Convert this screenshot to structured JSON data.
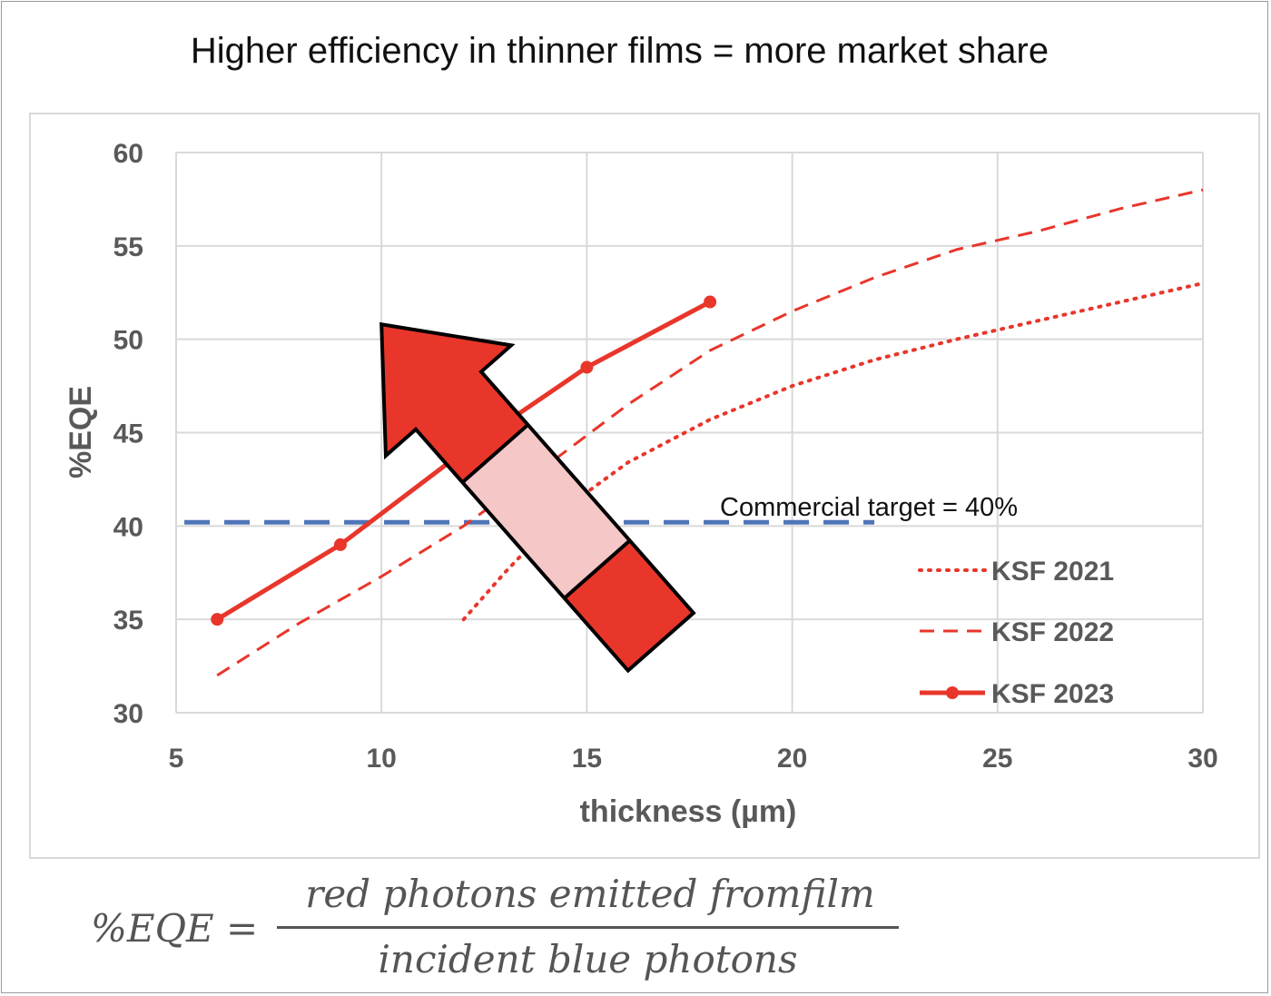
{
  "title": "Higher efficiency in thinner films = more market share",
  "formula": {
    "lhs": "%EQE =",
    "numerator": "red photons emitted fromfilm",
    "denominator": "incident blue photons"
  },
  "chart_data": {
    "type": "line",
    "title": "Higher efficiency in thinner films = more market share",
    "xlabel": "thickness (µm)",
    "ylabel": "%EQE",
    "xlim": [
      5,
      30
    ],
    "ylim": [
      30,
      60
    ],
    "xticks": [
      5,
      10,
      15,
      20,
      25,
      30
    ],
    "yticks": [
      30,
      35,
      40,
      45,
      50,
      55,
      60
    ],
    "grid": true,
    "legend_position": "bottom-right",
    "series": [
      {
        "name": "KSF 2021",
        "style": "dotted",
        "color": "#e8362b",
        "x": [
          12,
          13,
          14,
          15,
          16,
          18,
          20,
          22,
          24,
          26,
          28,
          30
        ],
        "y": [
          35,
          37.5,
          39.8,
          41.8,
          43.4,
          45.7,
          47.5,
          48.9,
          50,
          51,
          52,
          53
        ]
      },
      {
        "name": "KSF 2022",
        "style": "dashed",
        "color": "#e8362b",
        "x": [
          6,
          8,
          10,
          12,
          14,
          16,
          18,
          20,
          22,
          24,
          26,
          28,
          30
        ],
        "y": [
          32,
          34.8,
          37.3,
          40,
          43.2,
          46.5,
          49.4,
          51.5,
          53.3,
          54.8,
          55.8,
          57,
          58
        ]
      },
      {
        "name": "KSF 2023",
        "style": "solid-markers",
        "color": "#e8362b",
        "x": [
          6,
          9,
          12,
          15,
          18
        ],
        "y": [
          35,
          39,
          44,
          48.5,
          52
        ]
      }
    ],
    "reference_line": {
      "label": "Commercial target = 40%",
      "y": 40.2,
      "x_range": [
        5.2,
        22
      ],
      "color": "#4f74b8",
      "style": "dashed"
    },
    "annotation_arrow": {
      "direction": "up-left",
      "from": [
        16.8,
        33.8
      ],
      "to": [
        10,
        50.8
      ],
      "fill": "#e8362b",
      "band_fill": "#f5c7c7",
      "outline": "#000000"
    }
  }
}
